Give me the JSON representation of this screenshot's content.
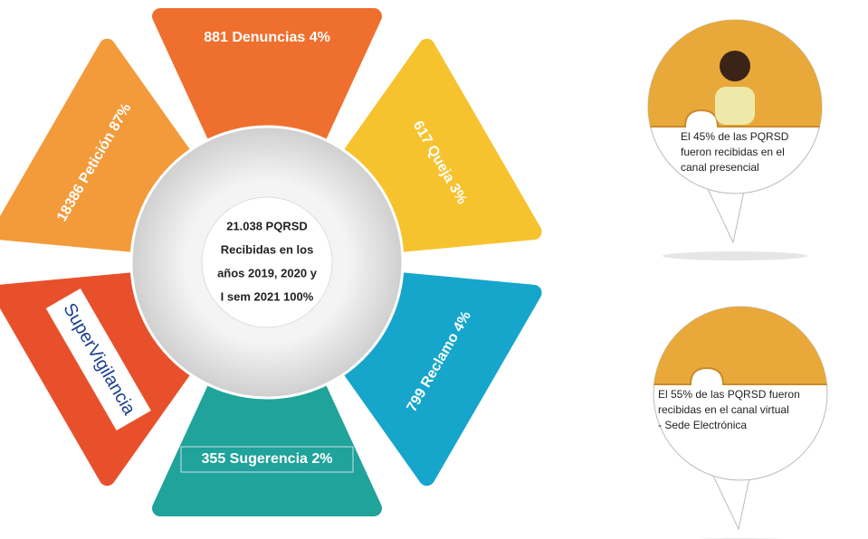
{
  "segments": [
    {
      "label": "881 Denuncias 4%"
    },
    {
      "label": "617 Queja 3%"
    },
    {
      "label": "799 Reclamo 4%"
    },
    {
      "label": "355 Sugerencia 2%"
    },
    {
      "label": "18386 Petición 87%"
    }
  ],
  "center": {
    "lines": [
      "21.038 PQRSD",
      "Recibidas en los",
      "años 2019, 2020 y",
      "I sem 2021 100%"
    ]
  },
  "logo": {
    "name": "SuperVigilancia"
  },
  "callouts": [
    {
      "lines": [
        "El 45% de las PQRSD",
        "fueron recibidas en el",
        "canal presencial"
      ]
    },
    {
      "lines": [
        "El 55% de las PQRSD fueron",
        "recibidas en el canal virtual",
        "- Sede Electrónica"
      ]
    }
  ]
}
